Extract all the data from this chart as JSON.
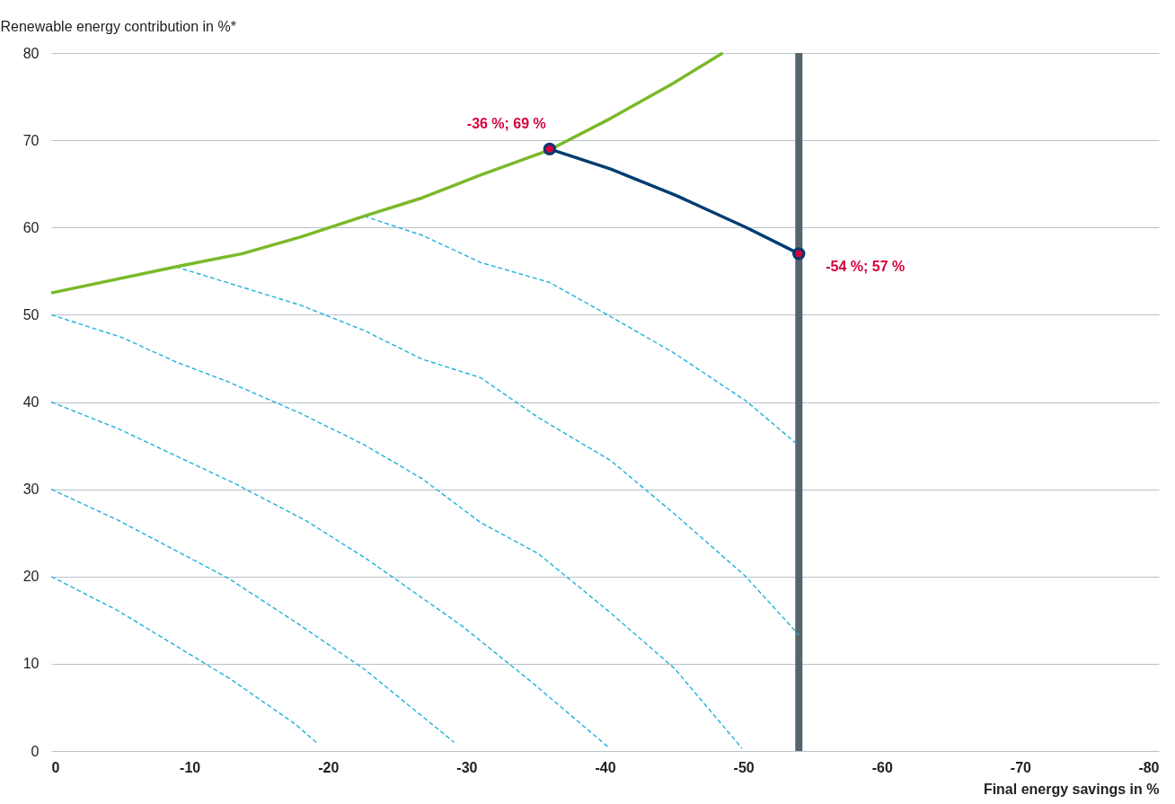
{
  "chart_data": {
    "type": "line",
    "xlabel": "Final energy savings in %",
    "ylabel": "Renewable energy contribution in %*",
    "xlim": [
      0,
      -80
    ],
    "xticks": [
      0,
      -10,
      -20,
      -30,
      -40,
      -50,
      -60,
      -70,
      -80
    ],
    "ylim": [
      0,
      80
    ],
    "yticks": [
      0,
      10,
      20,
      30,
      40,
      50,
      60,
      70,
      80
    ],
    "grid": "y",
    "series": [
      {
        "color": "#1eb1d9",
        "line_style": "dashed",
        "x": [
          0,
          -4.8,
          -12.9,
          -17.7,
          -19.2
        ],
        "values": [
          20,
          16.1,
          8.3,
          3.0,
          0.9
        ]
      },
      {
        "color": "#1eb1d9",
        "line_style": "dashed",
        "x": [
          0,
          -4.9,
          -12.9,
          -17.9,
          -22.6,
          -29.1
        ],
        "values": [
          30,
          26.4,
          19.7,
          14.5,
          9.4,
          1.0
        ]
      },
      {
        "color": "#1eb1d9",
        "line_style": "dashed",
        "x": [
          0,
          -4.9,
          -13.2,
          -18.4,
          -22.8,
          -29.7,
          -34.7,
          -40.2
        ],
        "values": [
          40,
          36.9,
          30.7,
          26.4,
          22.0,
          14.3,
          7.9,
          0.5
        ]
      },
      {
        "color": "#1eb1d9",
        "line_style": "dashed",
        "x": [
          0,
          -5.1,
          -9,
          -12.8,
          -18,
          -22.6,
          -26.8,
          -31,
          -35.2,
          -40.2,
          -45,
          -49.9
        ],
        "values": [
          50,
          47.4,
          44.6,
          42.3,
          38.7,
          35.1,
          31.2,
          26.2,
          22.6,
          16.1,
          9.5,
          0.3
        ]
      },
      {
        "color": "#1eb1d9",
        "line_style": "dashed",
        "x": [
          -9,
          -18,
          -22.6,
          -26.8,
          -31,
          -35.2,
          -40.4,
          -45,
          -50.1,
          -54
        ],
        "values": [
          55.5,
          51.1,
          48.2,
          44.9,
          42.8,
          38.2,
          33.3,
          27.2,
          20.1,
          13.3
        ]
      },
      {
        "color": "#1eb1d9",
        "line_style": "dashed",
        "x": [
          -22.6,
          -26.8,
          -31,
          -36,
          -40.4,
          -45,
          -50.2,
          -54
        ],
        "values": [
          61.3,
          59.1,
          56.0,
          53.7,
          49.8,
          45.6,
          40.1,
          35.0
        ]
      },
      {
        "color": "#7ab929",
        "line_style": "solid",
        "x": [
          0,
          -9,
          -13.8,
          -18,
          -22.6,
          -26.8,
          -31,
          -36,
          -40.4,
          -44.9,
          -48.5
        ],
        "values": [
          52.5,
          55.5,
          57.0,
          58.9,
          61.3,
          63.4,
          66.0,
          68.9,
          72.5,
          76.5,
          80
        ]
      },
      {
        "color": "#003c71",
        "line_style": "solid",
        "x": [
          -36,
          -40.4,
          -45.1,
          -50.2,
          -54
        ],
        "values": [
          69,
          66.7,
          63.7,
          60.0,
          57
        ]
      },
      {
        "type": "scatter",
        "color": "#d4003b",
        "marker": "circle",
        "x": [
          -36,
          -54
        ],
        "values": [
          69,
          57
        ]
      }
    ],
    "ref_lines": [
      {
        "axis": "x",
        "value": -54,
        "color": "#56646b"
      }
    ],
    "annotations": [
      {
        "text": "-36 %; 69 %",
        "x": -36,
        "y": 69
      },
      {
        "text": "-54 %; 57 %",
        "x": -54,
        "y": 57
      }
    ]
  }
}
